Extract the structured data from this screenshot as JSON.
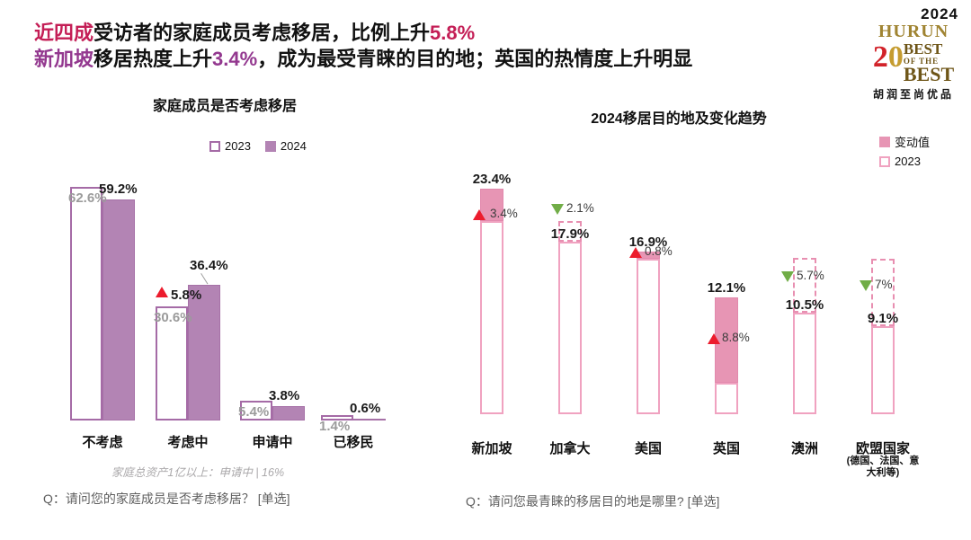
{
  "header": {
    "line1": {
      "accent": "近四成",
      "mid": "受访者的家庭成员考虑移居，比例上升",
      "value": "5.8%"
    },
    "line2": {
      "accent": "新加坡",
      "mid": "移居热度上升",
      "value": "3.4%",
      "rest": "，成为最受青睐的目的地；英国的热情度上升明显"
    }
  },
  "logo": {
    "year": "2024",
    "brand": "HURUN",
    "anniversary_2": "2",
    "anniversary_0": "0",
    "best1": "BEST",
    "of_the": "OF THE",
    "best2": "BEST",
    "cn": "胡润至尚优品"
  },
  "colors": {
    "headline_red": "#c41e56",
    "headline_purple": "#93388f",
    "purple_fill": "#b384b4",
    "purple_outline": "#a56ba6",
    "pink_fill": "#e795b4",
    "pink_outline": "#f0a2c0",
    "up_red": "#ec1c2d",
    "down_green": "#71ad47"
  },
  "chart_data": [
    {
      "type": "bar",
      "title": "家庭成员是否考虑移居",
      "legend": [
        "2023",
        "2024"
      ],
      "legend_position": "top-center",
      "categories": [
        "不考虑",
        "考虑中",
        "申请中",
        "已移民"
      ],
      "series": [
        {
          "name": "2023",
          "values": [
            62.6,
            30.6,
            5.4,
            1.4
          ]
        },
        {
          "name": "2024",
          "values": [
            59.2,
            36.4,
            3.8,
            0.6
          ]
        }
      ],
      "value_labels_2023": [
        "62.6%",
        "30.6%",
        "5.4%",
        "1.4%"
      ],
      "value_labels_2024": [
        "59.2%",
        "36.4%",
        "3.8%",
        "0.6%"
      ],
      "annotation": {
        "category": "考虑中",
        "label": "5.8%",
        "direction": "up"
      },
      "unit": "%",
      "ylim": [
        0,
        70
      ],
      "grid": false,
      "note": "家庭总资产1亿以上：申请中 | 16%",
      "question": "Q：请问您的家庭成员是否考虑移居？ [单选]"
    },
    {
      "type": "bar",
      "title": "2024移居目的地及变化趋势",
      "legend": [
        "变动值",
        "2023"
      ],
      "legend_position": "top-right",
      "categories": [
        "新加坡",
        "加拿大",
        "美国",
        "英国",
        "澳洲",
        "欧盟国家"
      ],
      "category_note_index": 5,
      "category_note": "(德国、法国、意大利等)",
      "values_2024": [
        23.4,
        17.9,
        16.9,
        12.1,
        10.5,
        9.1
      ],
      "values_2023": [
        20.0,
        20.0,
        16.1,
        3.3,
        16.2,
        16.1
      ],
      "changes": [
        3.4,
        -2.1,
        0.8,
        8.8,
        -5.7,
        -7
      ],
      "value_labels": [
        "23.4%",
        "17.9%",
        "16.9%",
        "12.1%",
        "10.5%",
        "9.1%"
      ],
      "change_labels": [
        "3.4%",
        "2.1%",
        "0.8%",
        "8.8%",
        "5.7%",
        "7%"
      ],
      "unit": "%",
      "ylim": [
        0,
        25
      ],
      "grid": false,
      "question": "Q：请问您最青睐的移居目的地是哪里? [单选]"
    }
  ]
}
